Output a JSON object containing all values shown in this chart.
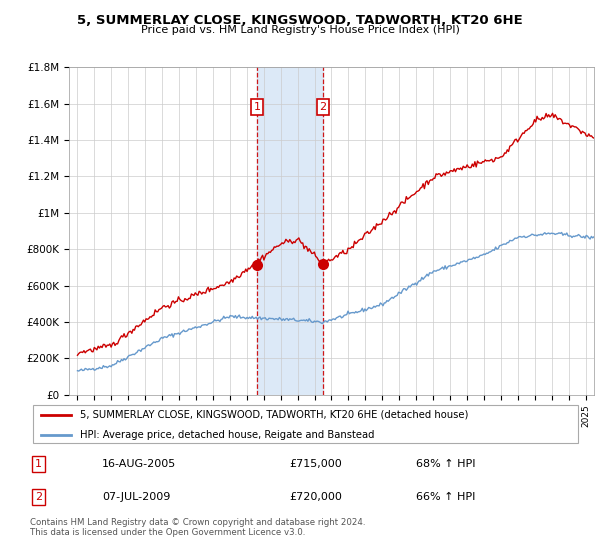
{
  "title": "5, SUMMERLAY CLOSE, KINGSWOOD, TADWORTH, KT20 6HE",
  "subtitle": "Price paid vs. HM Land Registry's House Price Index (HPI)",
  "legend_label_red": "5, SUMMERLAY CLOSE, KINGSWOOD, TADWORTH, KT20 6HE (detached house)",
  "legend_label_blue": "HPI: Average price, detached house, Reigate and Banstead",
  "transaction1_label": "1",
  "transaction1_date": "16-AUG-2005",
  "transaction1_price": "£715,000",
  "transaction1_hpi": "68% ↑ HPI",
  "transaction2_label": "2",
  "transaction2_date": "07-JUL-2009",
  "transaction2_price": "£720,000",
  "transaction2_hpi": "66% ↑ HPI",
  "footer": "Contains HM Land Registry data © Crown copyright and database right 2024.\nThis data is licensed under the Open Government Licence v3.0.",
  "highlight_start": 2005.6,
  "highlight_end": 2009.5,
  "transaction1_x": 2005.6,
  "transaction1_y": 715000,
  "transaction2_x": 2009.5,
  "transaction2_y": 720000,
  "ylim": [
    0,
    1800000
  ],
  "xlim_start": 1994.5,
  "xlim_end": 2025.5,
  "yticks": [
    0,
    200000,
    400000,
    600000,
    800000,
    1000000,
    1200000,
    1400000,
    1600000,
    1800000
  ],
  "ytick_labels": [
    "£0",
    "£200K",
    "£400K",
    "£600K",
    "£800K",
    "£1M",
    "£1.2M",
    "£1.4M",
    "£1.6M",
    "£1.8M"
  ],
  "background_color": "#ffffff",
  "grid_color": "#cccccc",
  "highlight_color": "#dce9f7",
  "red_color": "#cc0000",
  "blue_color": "#6699cc"
}
